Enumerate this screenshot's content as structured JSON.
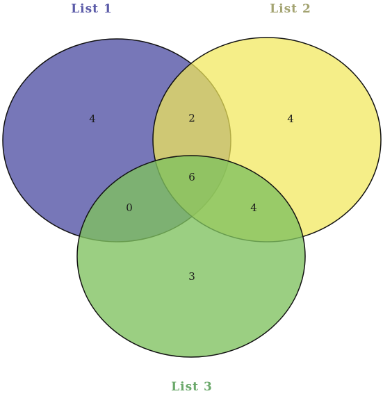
{
  "sets": [
    {
      "id": "list1",
      "label": "List 1",
      "label_color": "#5b5ba8",
      "fill": "#4a4aa0"
    },
    {
      "id": "list2",
      "label": "List 2",
      "label_color": "#a3a371",
      "fill": "#f1e85a"
    },
    {
      "id": "list3",
      "label": "List 3",
      "label_color": "#6aa86a",
      "fill": "#7fc25f"
    }
  ],
  "regions": {
    "only_1": "4",
    "only_2": "4",
    "only_3": "3",
    "list1_list2": "2",
    "list1_list3": "0",
    "list2_list3": "4",
    "all_three": "6"
  },
  "stroke_color": "#111111"
}
